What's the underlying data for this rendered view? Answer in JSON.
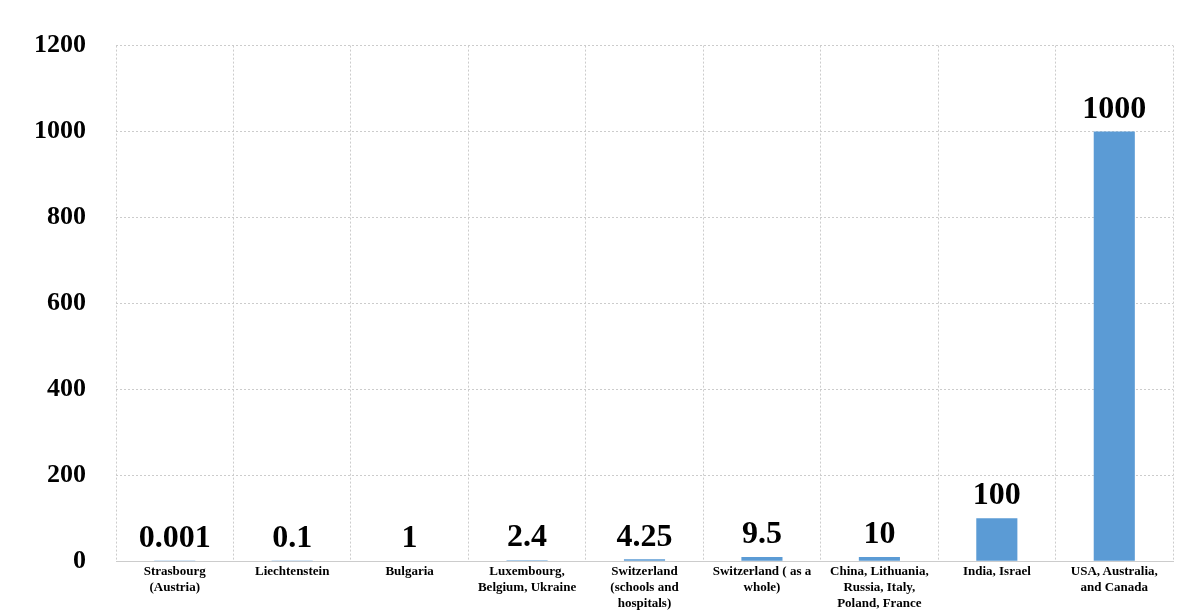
{
  "chart_data": {
    "type": "bar",
    "categories": [
      "Strasbourg (Austria)",
      "Liechtenstein",
      "Bulgaria",
      "Luxembourg, Belgium, Ukraine",
      "Switzerland (schools and hospitals)",
      "Switzerland ( as a whole)",
      "China, Lithuania, Russia, Italy, Poland, France",
      "India, Israel",
      "USA, Australia, and Canada"
    ],
    "values": [
      0.001,
      0.1,
      1,
      2.4,
      4.25,
      9.5,
      10,
      100,
      1000
    ],
    "color": "#5b9bd5",
    "ylim": [
      0,
      1200
    ],
    "yticks": [
      0,
      200,
      400,
      600,
      800,
      1000,
      1200
    ],
    "grid": true,
    "data_labels": true
  }
}
